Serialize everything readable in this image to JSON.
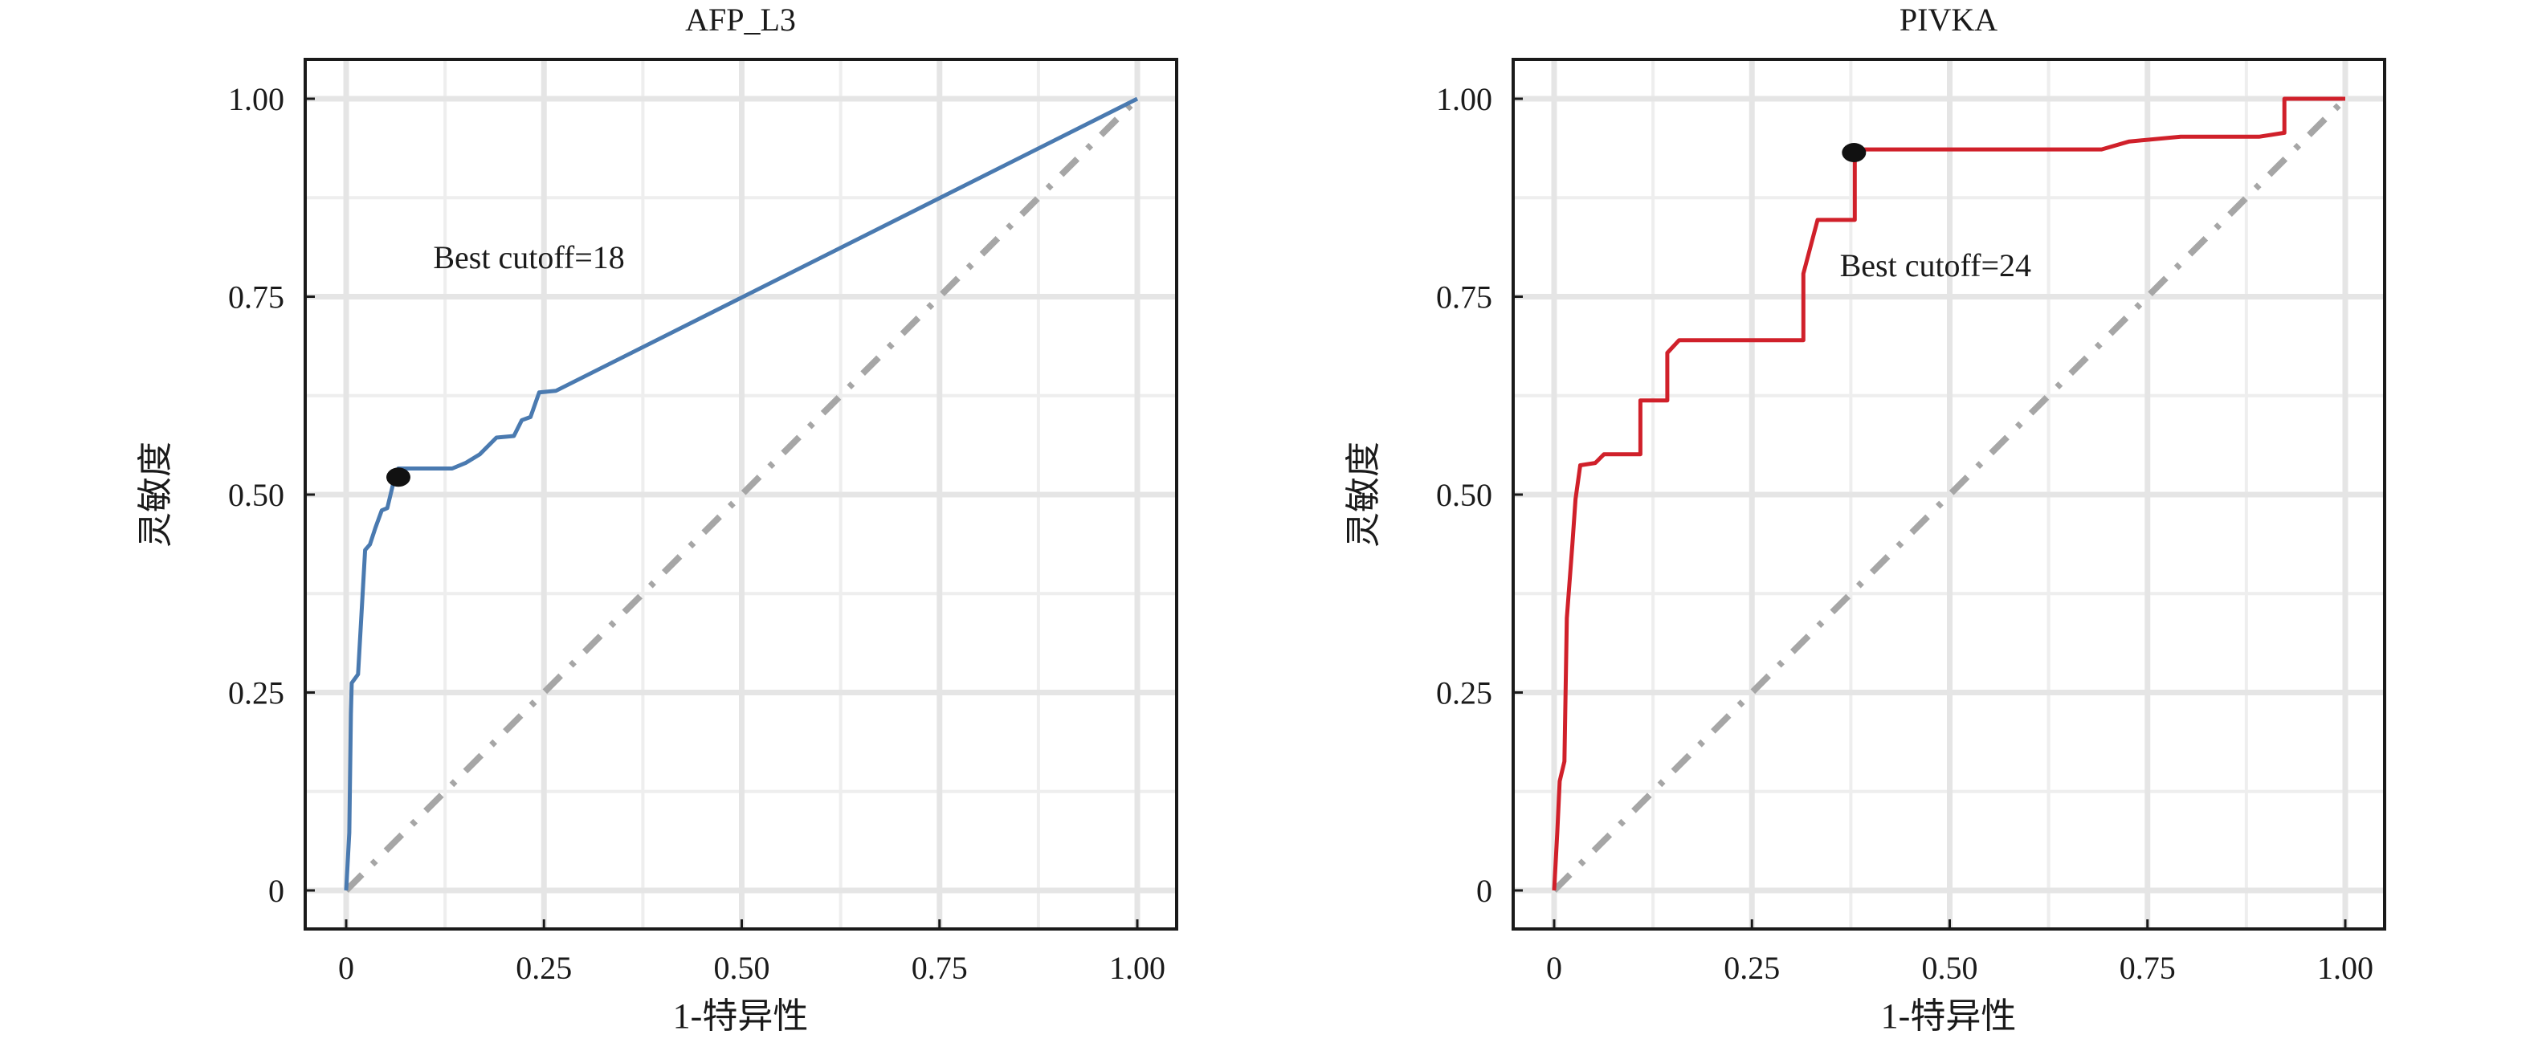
{
  "chart_data": [
    {
      "type": "line",
      "title": "AFP_L3",
      "xlabel": "1-特异性",
      "ylabel": "灵敏度",
      "xlim": [
        0,
        1
      ],
      "ylim": [
        0,
        1
      ],
      "xticks": [
        "0",
        "0.25",
        "0.50",
        "0.75",
        "1.00"
      ],
      "yticks": [
        "0",
        "0.25",
        "0.50",
        "0.75",
        "1.00"
      ],
      "xtick_values": [
        0,
        0.25,
        0.5,
        0.75,
        1
      ],
      "ytick_values": [
        0,
        0.25,
        0.5,
        0.75,
        1
      ],
      "grid": true,
      "color": "#4a7ab0",
      "series": [
        {
          "name": "AFP_L3",
          "x": [
            0,
            0.004,
            0.006,
            0.007,
            0.015,
            0.024,
            0.03,
            0.037,
            0.045,
            0.052,
            0.059,
            0.066,
            0.134,
            0.151,
            0.169,
            0.19,
            0.212,
            0.222,
            0.233,
            0.244,
            0.265,
            1
          ],
          "y": [
            0,
            0.073,
            0.223,
            0.262,
            0.273,
            0.43,
            0.437,
            0.458,
            0.48,
            0.483,
            0.512,
            0.533,
            0.533,
            0.54,
            0.551,
            0.572,
            0.574,
            0.594,
            0.598,
            0.629,
            0.631,
            1
          ]
        }
      ],
      "best_point": {
        "x": 0.066,
        "y": 0.522
      },
      "annotation": {
        "text": "Best cutoff=18",
        "x": 0.11,
        "y": 0.786
      },
      "reference_line": {
        "x": [
          0,
          1
        ],
        "y": [
          0,
          1
        ],
        "color": "#a6a6a6"
      }
    },
    {
      "type": "line",
      "title": "PIVKA",
      "xlabel": "1-特异性",
      "ylabel": "灵敏度",
      "xlim": [
        0,
        1
      ],
      "ylim": [
        0,
        1
      ],
      "xticks": [
        "0",
        "0.25",
        "0.50",
        "0.75",
        "1.00"
      ],
      "yticks": [
        "0",
        "0.25",
        "0.50",
        "0.75",
        "1.00"
      ],
      "xtick_values": [
        0,
        0.25,
        0.5,
        0.75,
        1
      ],
      "ytick_values": [
        0,
        0.25,
        0.5,
        0.75,
        1
      ],
      "grid": true,
      "color": "#d0202a",
      "series": [
        {
          "name": "PIVKA",
          "x": [
            0,
            0.004,
            0.007,
            0.013,
            0.016,
            0.023,
            0.027,
            0.033,
            0.052,
            0.063,
            0.109,
            0.109,
            0.143,
            0.143,
            0.158,
            0.315,
            0.315,
            0.333,
            0.38,
            0.38,
            0.692,
            0.727,
            0.792,
            0.891,
            0.923,
            0.923,
            1
          ],
          "y": [
            0,
            0.073,
            0.138,
            0.163,
            0.344,
            0.437,
            0.494,
            0.537,
            0.54,
            0.551,
            0.551,
            0.619,
            0.619,
            0.679,
            0.695,
            0.695,
            0.779,
            0.847,
            0.847,
            0.936,
            0.936,
            0.946,
            0.952,
            0.952,
            0.957,
            1.0,
            1.0
          ]
        }
      ],
      "best_point": {
        "x": 0.379,
        "y": 0.932
      },
      "annotation": {
        "text": "Best cutoff=24",
        "x": 0.361,
        "y": 0.776
      },
      "reference_line": {
        "x": [
          0,
          1
        ],
        "y": [
          0,
          1
        ],
        "color": "#a6a6a6"
      }
    }
  ]
}
